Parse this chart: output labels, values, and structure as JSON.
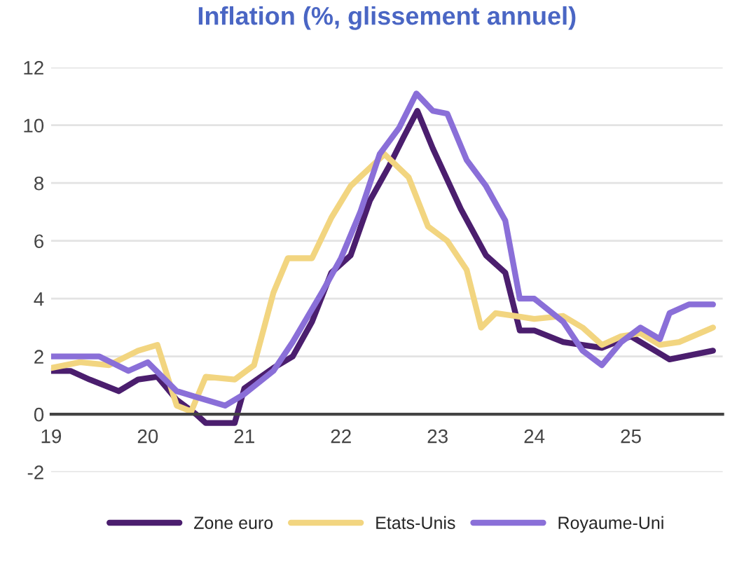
{
  "chart_data": {
    "type": "line",
    "title": "Inflation (%, glissement annuel)",
    "xlim": [
      2019,
      2025.95
    ],
    "xticks": [
      {
        "value": 2019,
        "label": "19"
      },
      {
        "value": 2020,
        "label": "20"
      },
      {
        "value": 2021,
        "label": "21"
      },
      {
        "value": 2022,
        "label": "22"
      },
      {
        "value": 2023,
        "label": "23"
      },
      {
        "value": 2024,
        "label": "24"
      },
      {
        "value": 2025,
        "label": "25"
      }
    ],
    "ylim": [
      -2,
      12
    ],
    "yticks": [
      -2,
      0,
      2,
      4,
      6,
      8,
      10,
      12
    ],
    "grid": "y",
    "legend": "bottom",
    "line_style": "solid",
    "marker": "none",
    "series": [
      {
        "name": "Zone euro",
        "color": "#4b1e6e",
        "x": [
          2019.0,
          2019.2,
          2019.4,
          2019.7,
          2019.9,
          2020.1,
          2020.3,
          2020.5,
          2020.6,
          2020.9,
          2021.0,
          2021.3,
          2021.5,
          2021.7,
          2021.9,
          2022.1,
          2022.3,
          2022.5,
          2022.65,
          2022.79,
          2022.95,
          2023.24,
          2023.5,
          2023.7,
          2023.85,
          2024.0,
          2024.3,
          2024.7,
          2025.0,
          2025.4,
          2025.85
        ],
        "values": [
          1.5,
          1.5,
          1.2,
          0.8,
          1.2,
          1.3,
          0.5,
          0.0,
          -0.3,
          -0.3,
          0.9,
          1.6,
          2.0,
          3.2,
          4.9,
          5.5,
          7.4,
          8.6,
          9.6,
          10.5,
          9.2,
          7.1,
          5.5,
          4.9,
          2.9,
          2.9,
          2.5,
          2.3,
          2.7,
          1.9,
          2.2
        ]
      },
      {
        "name": "Etats-Unis",
        "color": "#f2d580",
        "x": [
          2019.0,
          2019.3,
          2019.6,
          2019.9,
          2020.1,
          2020.3,
          2020.45,
          2020.6,
          2020.9,
          2021.1,
          2021.3,
          2021.45,
          2021.7,
          2021.9,
          2022.1,
          2022.45,
          2022.7,
          2022.9,
          2023.1,
          2023.3,
          2023.45,
          2023.6,
          2023.8,
          2024.0,
          2024.3,
          2024.5,
          2024.7,
          2024.9,
          2025.1,
          2025.3,
          2025.5,
          2025.85
        ],
        "values": [
          1.6,
          1.8,
          1.7,
          2.2,
          2.4,
          0.3,
          0.1,
          1.3,
          1.2,
          1.7,
          4.2,
          5.4,
          5.4,
          6.8,
          7.9,
          9.0,
          8.2,
          6.5,
          6.0,
          5.0,
          3.0,
          3.5,
          3.4,
          3.3,
          3.4,
          3.0,
          2.4,
          2.7,
          2.8,
          2.4,
          2.5,
          3.0
        ]
      },
      {
        "name": "Royaume-Uni",
        "color": "#8a6fd8",
        "x": [
          2019.0,
          2019.5,
          2019.8,
          2020.0,
          2020.3,
          2020.5,
          2020.8,
          2021.0,
          2021.3,
          2021.5,
          2021.8,
          2022.0,
          2022.2,
          2022.4,
          2022.6,
          2022.78,
          2022.95,
          2023.1,
          2023.3,
          2023.5,
          2023.7,
          2023.85,
          2024.0,
          2024.3,
          2024.5,
          2024.7,
          2024.9,
          2025.1,
          2025.3,
          2025.4,
          2025.6,
          2025.85
        ],
        "values": [
          2.0,
          2.0,
          1.5,
          1.8,
          0.8,
          0.6,
          0.3,
          0.7,
          1.5,
          2.5,
          4.2,
          5.4,
          7.0,
          9.0,
          9.9,
          11.1,
          10.5,
          10.4,
          8.8,
          7.9,
          6.7,
          4.0,
          4.0,
          3.2,
          2.2,
          1.7,
          2.5,
          3.0,
          2.6,
          3.5,
          3.8,
          3.8
        ]
      }
    ]
  }
}
